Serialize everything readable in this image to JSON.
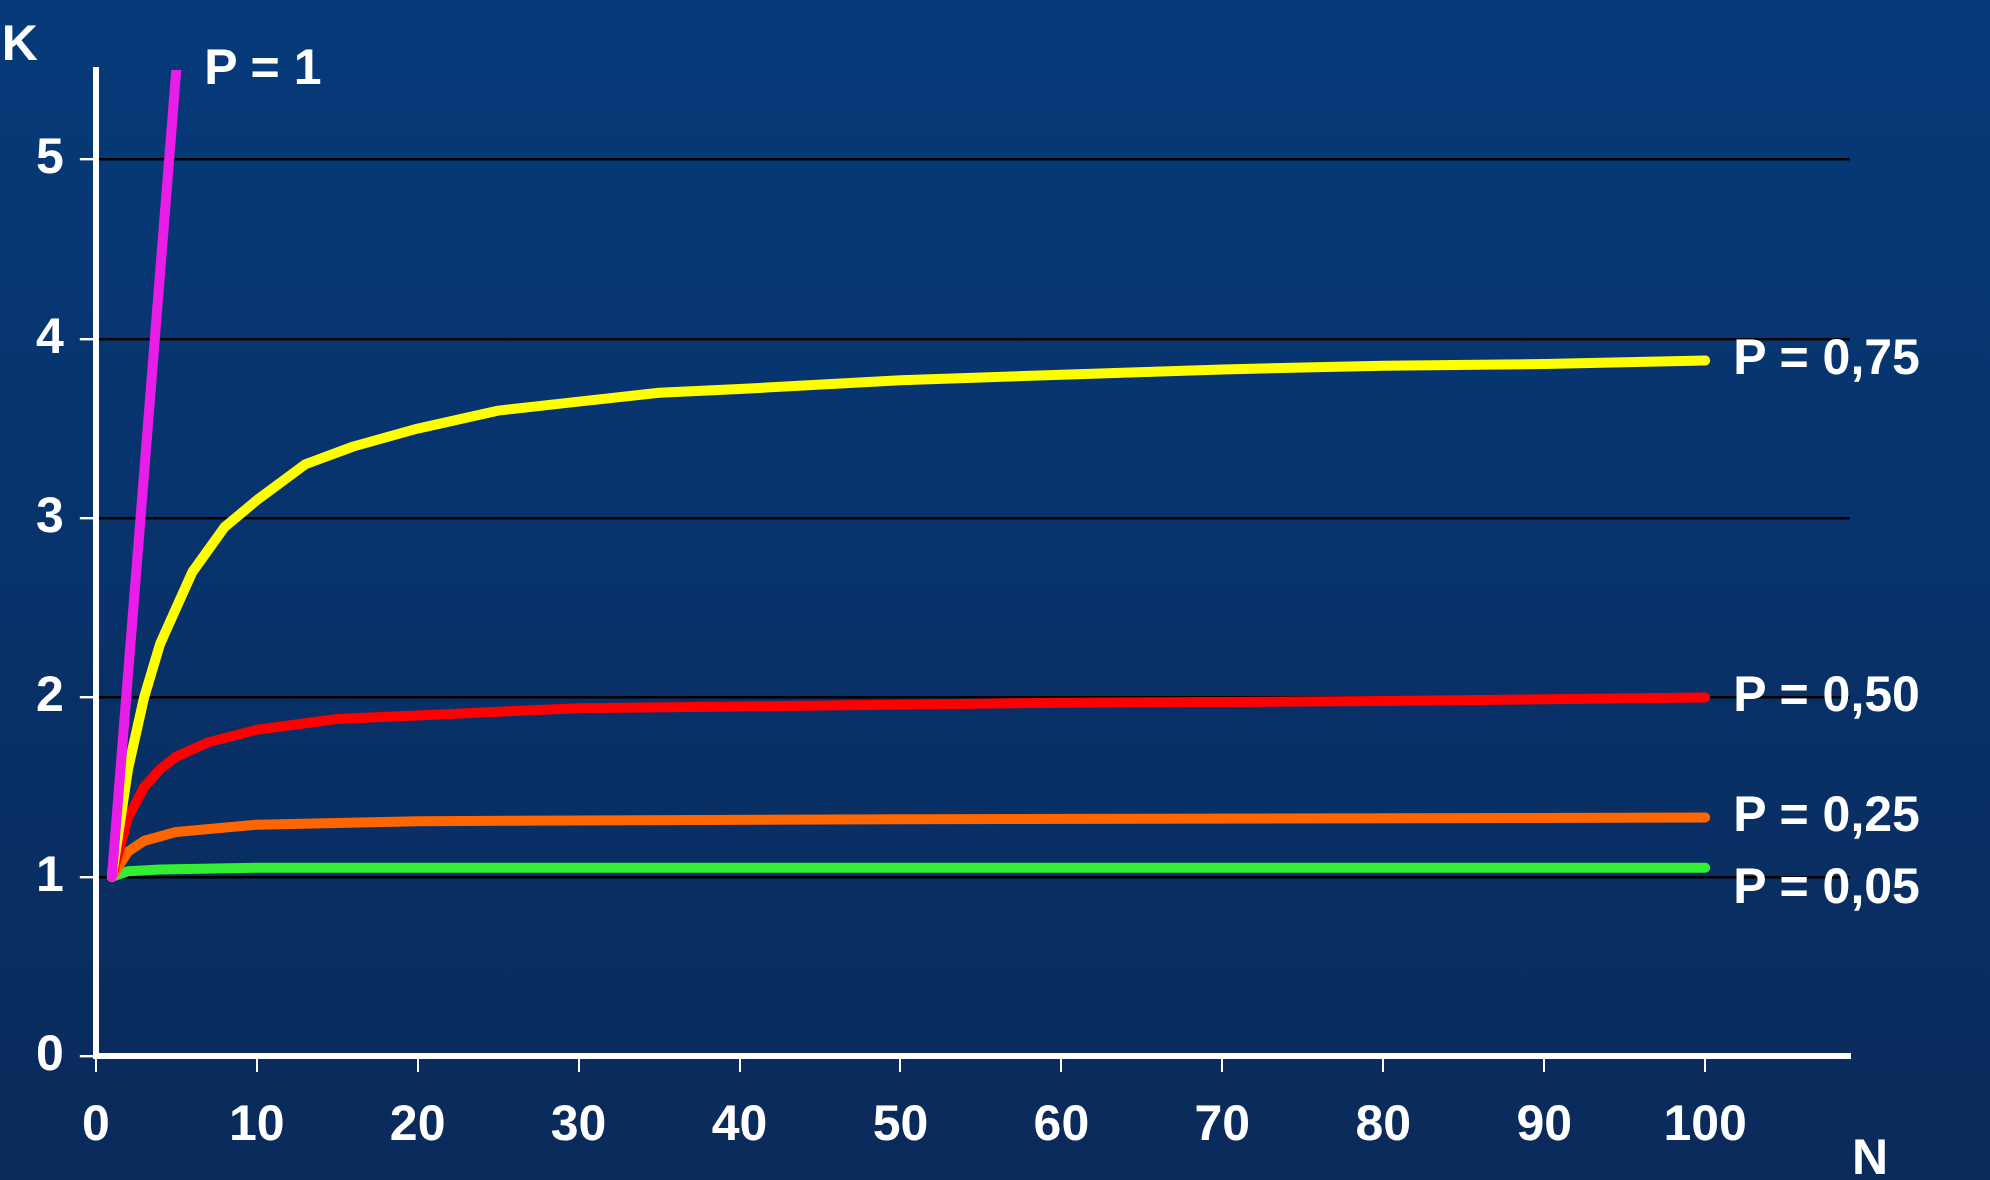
{
  "chart_data": {
    "type": "line",
    "xlabel": "N",
    "ylabel": "K",
    "xlim": [
      0,
      109
    ],
    "xticks": [
      0,
      10,
      20,
      30,
      40,
      50,
      60,
      70,
      80,
      90,
      100
    ],
    "ylim": [
      0,
      5.5
    ],
    "yticks": [
      0,
      1,
      2,
      3,
      4,
      5
    ],
    "grid": "y",
    "legend": false,
    "marker": "none",
    "line_style": "solid",
    "series": [
      {
        "name": "P = 1",
        "color": "#e81ee8",
        "x": [
          1,
          5
        ],
        "values": [
          1,
          5.5
        ]
      },
      {
        "name": "P = 0,75",
        "color": "#ffff00",
        "x": [
          1,
          2,
          3,
          4,
          5,
          6,
          8,
          10,
          13,
          16,
          20,
          25,
          30,
          35,
          40,
          50,
          60,
          70,
          80,
          90,
          100
        ],
        "values": [
          1,
          1.6,
          2,
          2.3,
          2.5,
          2.7,
          2.95,
          3.1,
          3.3,
          3.4,
          3.5,
          3.6,
          3.65,
          3.7,
          3.72,
          3.77,
          3.8,
          3.83,
          3.85,
          3.86,
          3.88
        ]
      },
      {
        "name": "P = 0,50",
        "color": "#ff0000",
        "x": [
          1,
          2,
          3,
          4,
          5,
          7,
          10,
          15,
          20,
          30,
          40,
          60,
          80,
          100
        ],
        "values": [
          1,
          1.33,
          1.5,
          1.6,
          1.67,
          1.75,
          1.82,
          1.88,
          1.9,
          1.94,
          1.95,
          1.97,
          1.98,
          2
        ]
      },
      {
        "name": "P = 0,25",
        "color": "#ff6600",
        "x": [
          1,
          2,
          3,
          5,
          10,
          20,
          50,
          100
        ],
        "values": [
          1,
          1.14,
          1.2,
          1.25,
          1.29,
          1.31,
          1.32,
          1.33
        ]
      },
      {
        "name": "P = 0,05",
        "color": "#33ee33",
        "x": [
          1,
          2,
          4,
          10,
          100
        ],
        "values": [
          1,
          1.03,
          1.04,
          1.05,
          1.05
        ]
      }
    ]
  }
}
